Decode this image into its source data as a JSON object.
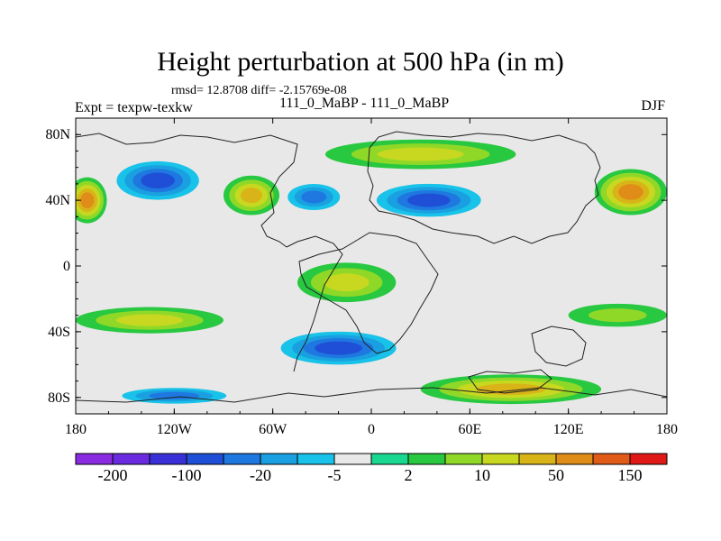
{
  "chart_data": {
    "type": "heatmap",
    "title": "Height perturbation at 500 hPa (in m)",
    "stats_text": "rmsd= 12.8708 diff= -2.15769e-08",
    "left_label": "Expt = texpw-texkw",
    "center_label": "111_0_MaBP - 111_0_MaBP",
    "right_label": "DJF",
    "xlim": [
      -180,
      180
    ],
    "ylim": [
      -90,
      90
    ],
    "x_ticks": [
      {
        "value": -180,
        "label": "180"
      },
      {
        "value": -120,
        "label": "120W"
      },
      {
        "value": -60,
        "label": "60W"
      },
      {
        "value": 0,
        "label": "0"
      },
      {
        "value": 60,
        "label": "60E"
      },
      {
        "value": 120,
        "label": "120E"
      },
      {
        "value": 180,
        "label": "180"
      }
    ],
    "y_ticks": [
      {
        "value": 80,
        "label": "80N"
      },
      {
        "value": 40,
        "label": "40N"
      },
      {
        "value": 0,
        "label": "0"
      },
      {
        "value": -40,
        "label": "40S"
      },
      {
        "value": -80,
        "label": "80S"
      }
    ],
    "colorbar": {
      "colors": [
        "#8a2be2",
        "#6a2be0",
        "#3a30d8",
        "#1f4fd6",
        "#1e78e0",
        "#1aa0e0",
        "#18c2e8",
        "#e8e8e8",
        "#18d890",
        "#28c840",
        "#90d828",
        "#c8d820",
        "#d8b418",
        "#e08c18",
        "#e05a18",
        "#e01818"
      ],
      "labels": [
        "-200",
        "-100",
        "-20",
        "-5",
        "2",
        "10",
        "50",
        "150"
      ]
    },
    "field_blobs": [
      {
        "lon": -130,
        "lat": 52,
        "rlon": 30,
        "rlat": 14,
        "value": -80
      },
      {
        "lon": -173,
        "lat": 40,
        "rlon": 12,
        "rlat": 14,
        "value": 60
      },
      {
        "lon": -73,
        "lat": 43,
        "rlon": 17,
        "rlat": 12,
        "value": 30
      },
      {
        "lon": 35,
        "lat": 40,
        "rlon": 38,
        "rlat": 12,
        "value": -60
      },
      {
        "lon": -35,
        "lat": 42,
        "rlon": 20,
        "rlat": 10,
        "value": -40
      },
      {
        "lon": 158,
        "lat": 45,
        "rlon": 22,
        "rlat": 14,
        "value": 70
      },
      {
        "lon": 30,
        "lat": 68,
        "rlon": 58,
        "rlat": 9,
        "value": 12
      },
      {
        "lon": -15,
        "lat": -10,
        "rlon": 30,
        "rlat": 12,
        "value": 10
      },
      {
        "lon": -135,
        "lat": -33,
        "rlon": 45,
        "rlat": 8,
        "value": 10
      },
      {
        "lon": 150,
        "lat": -30,
        "rlon": 30,
        "rlat": 7,
        "value": 8
      },
      {
        "lon": -20,
        "lat": -50,
        "rlon": 42,
        "rlat": 12,
        "value": -60
      },
      {
        "lon": 85,
        "lat": -75,
        "rlon": 55,
        "rlat": 9,
        "value": 40
      },
      {
        "lon": -120,
        "lat": -79,
        "rlon": 40,
        "rlat": 6,
        "value": -30
      }
    ]
  }
}
